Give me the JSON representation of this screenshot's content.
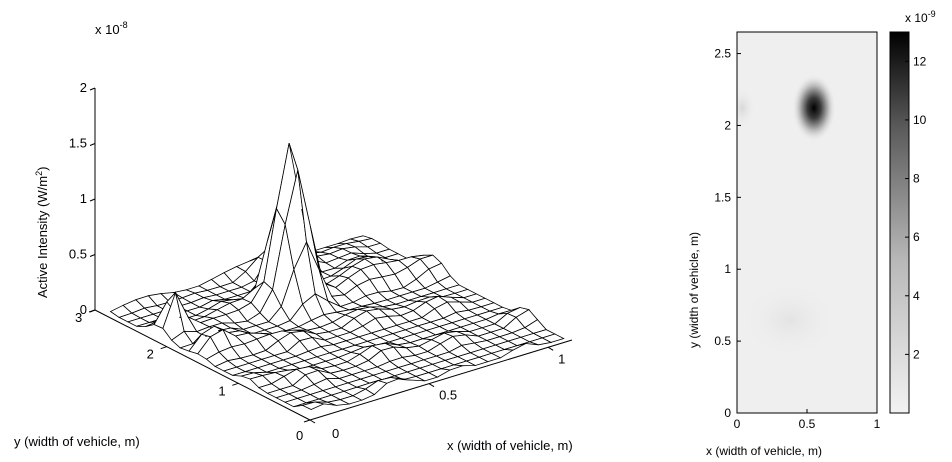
{
  "chart_data": [
    {
      "type": "surface",
      "title": "",
      "exponent_label": "x 10",
      "exponent_power": "-8",
      "xlabel": "x (width of vehicle, m)",
      "ylabel": "y (width of vehicle, m)",
      "zlabel": "Active Intensity (W/m",
      "zlabel_sup": "2",
      "zlabel_end": ")",
      "xlim": [
        0,
        1.1
      ],
      "ylim": [
        0,
        3
      ],
      "zlim": [
        0,
        2
      ],
      "x_ticks": [
        "0",
        "0.5",
        "1"
      ],
      "y_ticks": [
        "0",
        "1",
        "2",
        "3"
      ],
      "z_ticks": [
        "0",
        "0.5",
        "1",
        "1.5",
        "2"
      ],
      "z_scale": 1e-08,
      "grid_nx": 21,
      "grid_ny": 24,
      "peaks": [
        {
          "x": 0.55,
          "y": 2.1,
          "z": 1.35
        },
        {
          "x": 0.08,
          "y": 2.15,
          "z": 0.38
        },
        {
          "x": 0.1,
          "y": 1.7,
          "z": 0.25
        }
      ]
    },
    {
      "type": "heatmap",
      "title": "",
      "xlabel": "x (width of vehicle, m)",
      "ylabel": "y (width of vehicle, m)",
      "xlim": [
        0,
        1
      ],
      "ylim": [
        0,
        2.65
      ],
      "x_ticks": [
        "0",
        "0.5",
        "1"
      ],
      "y_ticks": [
        "0",
        "0.5",
        "1",
        "1.5",
        "2",
        "2.5"
      ],
      "colormap": "gray-reversed",
      "colorbar_exponent_label": "x 10",
      "colorbar_exponent_power": "-9",
      "colorbar_ticks": [
        "2",
        "4",
        "6",
        "8",
        "10",
        "12"
      ],
      "colorbar_range": [
        0,
        13
      ],
      "hotspot": {
        "x": 0.55,
        "y": 2.1,
        "value": 13
      }
    }
  ]
}
